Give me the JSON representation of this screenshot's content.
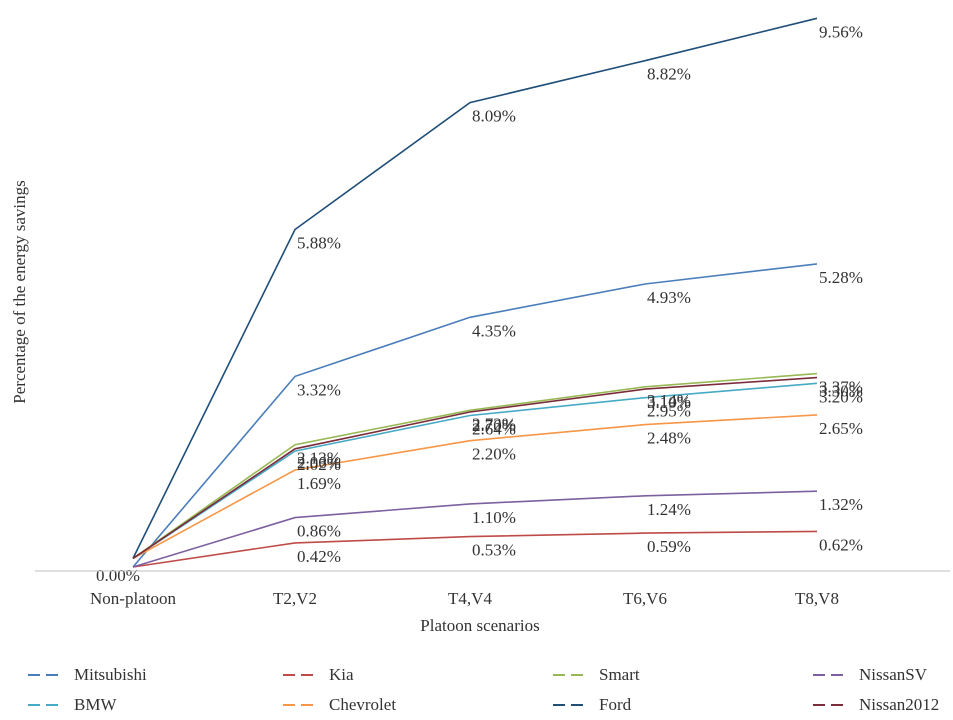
{
  "chart_data": {
    "type": "line",
    "xlabel": "Platoon scenarios",
    "ylabel": "Percentage of the energy savings",
    "categories": [
      "Non-platoon",
      "T2,V2",
      "T4,V4",
      "T6,V6",
      "T8,V8"
    ],
    "ylim": [
      0,
      10
    ],
    "grid": false,
    "legend_position": "bottom",
    "series": [
      {
        "name": "Mitsubishi",
        "color": "#4a7ebb",
        "values": [
          0,
          3.32,
          4.35,
          4.93,
          5.28
        ],
        "labels": [
          "",
          "3.32%",
          "4.35%",
          "4.93%",
          "5.28%"
        ]
      },
      {
        "name": "Kia",
        "color": "#be4b48",
        "values": [
          0,
          0.42,
          0.53,
          0.59,
          0.62
        ],
        "labels": [
          "0.00%",
          "0.42%",
          "0.53%",
          "0.59%",
          "0.62%"
        ]
      },
      {
        "name": "Smart",
        "color": "#98b954",
        "values": [
          0.15,
          2.13,
          2.73,
          3.14,
          3.37
        ],
        "labels": [
          "",
          "2.13%",
          "2.73%",
          "3.14%",
          "3.37%"
        ]
      },
      {
        "name": "NissanSV",
        "color": "#7d60a0",
        "values": [
          0,
          0.86,
          1.1,
          1.24,
          1.32
        ],
        "labels": [
          "",
          "0.86%",
          "1.10%",
          "1.24%",
          "1.32%"
        ]
      },
      {
        "name": "BMW",
        "color": "#46aac5",
        "values": [
          0.15,
          2.02,
          2.64,
          2.95,
          3.2
        ],
        "labels": [
          "",
          "2.02%",
          "2.64%",
          "2.95%",
          "3.20%"
        ]
      },
      {
        "name": "Chevrolet",
        "color": "#f79646",
        "values": [
          0.15,
          1.69,
          2.2,
          2.48,
          2.65
        ],
        "labels": [
          "",
          "1.69%",
          "2.20%",
          "2.48%",
          "2.65%"
        ]
      },
      {
        "name": "Ford",
        "color": "#1f4e79",
        "values": [
          0.15,
          5.88,
          8.09,
          8.82,
          9.56
        ],
        "labels": [
          "",
          "5.88%",
          "8.09%",
          "8.82%",
          "9.56%"
        ]
      },
      {
        "name": "Nissan2012",
        "color": "#7b2c3b",
        "values": [
          0.15,
          2.06,
          2.7,
          3.1,
          3.3
        ],
        "labels": [
          "",
          "2.06%",
          "2.70%",
          "3.10%",
          "3.30%"
        ]
      }
    ]
  }
}
